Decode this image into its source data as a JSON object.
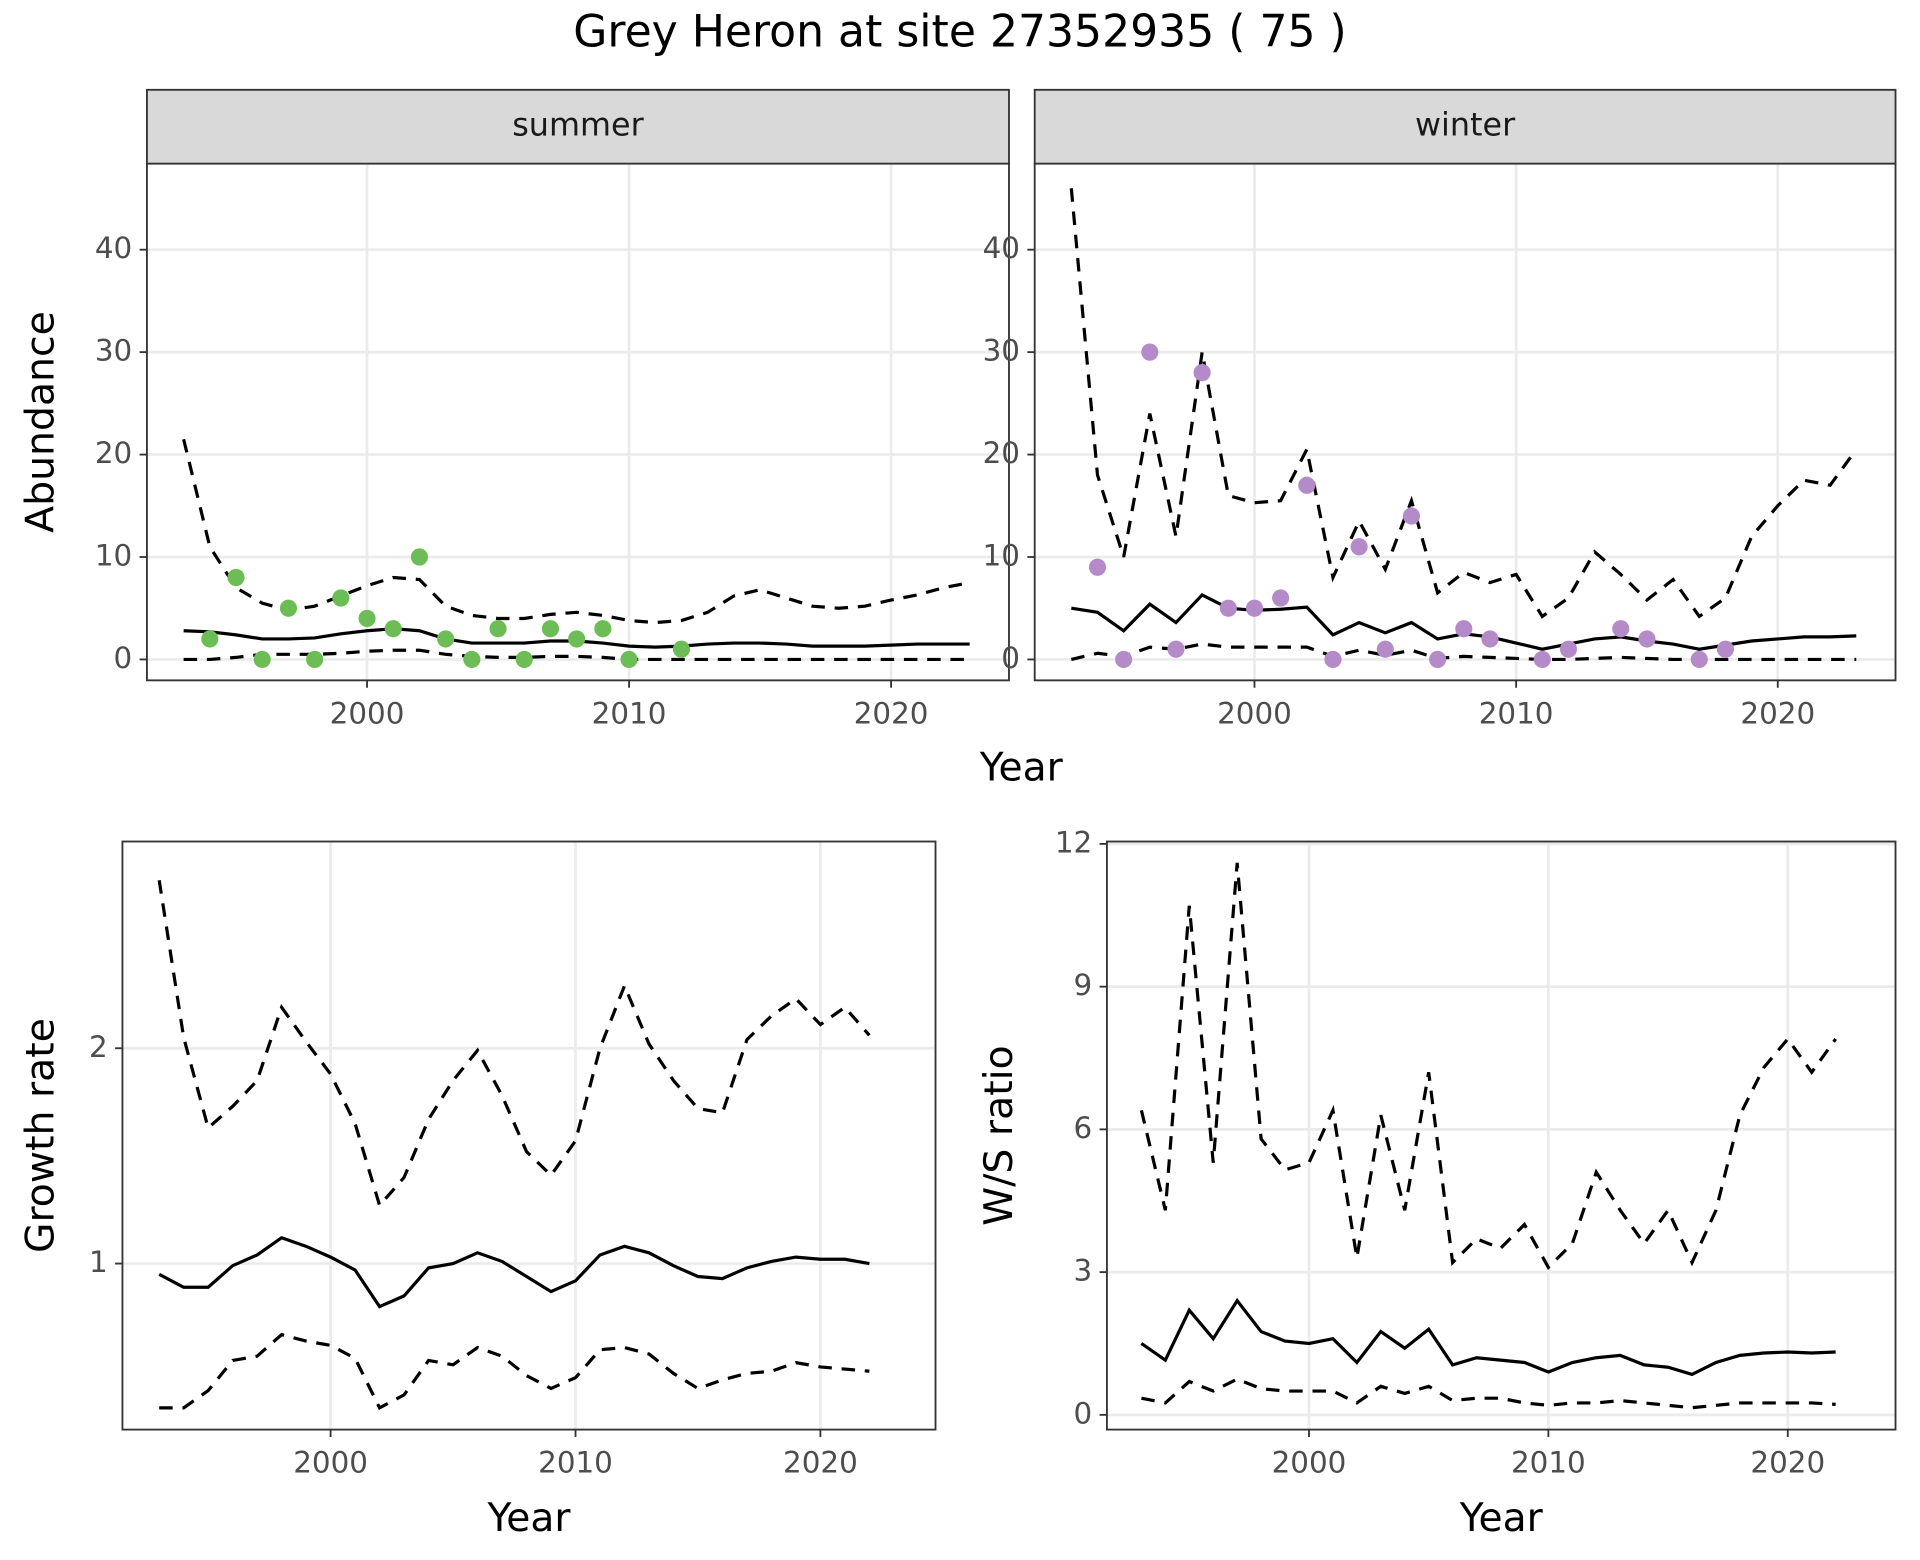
{
  "title": "Grey Heron at site 27352935 ( 75 )",
  "chart_data": [
    {
      "type": "line",
      "title": "summer",
      "xlabel": "Year",
      "ylabel": "Abundance",
      "x": [
        1993,
        1994,
        1995,
        1996,
        1997,
        1998,
        1999,
        2000,
        2001,
        2002,
        2003,
        2004,
        2005,
        2006,
        2007,
        2008,
        2009,
        2010,
        2011,
        2012,
        2013,
        2014,
        2015,
        2016,
        2017,
        2018,
        2019,
        2020,
        2021,
        2022,
        2023
      ],
      "xlim": [
        1991.6,
        2024.5
      ],
      "xticks": [
        2000,
        2010,
        2020
      ],
      "ylim": [
        -2.04,
        48.4
      ],
      "yticks": [
        0,
        10,
        20,
        30,
        40
      ],
      "grid": true,
      "series": [
        {
          "mode": "line",
          "linetype": "dashed",
          "color": "#000000",
          "values": [
            21.5,
            11,
            7,
            5.5,
            4.8,
            5.2,
            6.2,
            7.2,
            8.0,
            7.8,
            5.2,
            4.3,
            4.0,
            4.0,
            4.4,
            4.6,
            4.3,
            3.8,
            3.6,
            3.8,
            4.6,
            6.2,
            6.8,
            6.0,
            5.2,
            5.0,
            5.2,
            5.8,
            6.3,
            7.0,
            7.5
          ]
        },
        {
          "mode": "line",
          "linetype": "solid",
          "color": "#000000",
          "values": [
            2.8,
            2.7,
            2.4,
            2.0,
            2.0,
            2.1,
            2.5,
            2.8,
            3.0,
            2.8,
            2.0,
            1.6,
            1.6,
            1.6,
            1.8,
            1.8,
            1.6,
            1.3,
            1.2,
            1.3,
            1.5,
            1.6,
            1.6,
            1.5,
            1.3,
            1.3,
            1.3,
            1.4,
            1.5,
            1.5,
            1.5
          ]
        },
        {
          "mode": "line",
          "linetype": "dashed",
          "color": "#000000",
          "values": [
            0,
            0,
            0.2,
            0.5,
            0.5,
            0.5,
            0.6,
            0.8,
            0.9,
            0.9,
            0.5,
            0.3,
            0.2,
            0.2,
            0.3,
            0.3,
            0.2,
            0,
            0,
            0,
            0,
            0,
            0,
            0,
            0,
            0,
            0,
            0,
            0,
            0,
            0
          ]
        },
        {
          "mode": "points",
          "color": "#6dbd57",
          "values": [
            null,
            2,
            8,
            0,
            5,
            0,
            6,
            4,
            3,
            10,
            2,
            0,
            3,
            0,
            3,
            2,
            3,
            0,
            null,
            1,
            null,
            null,
            null,
            null,
            null,
            null,
            null,
            null,
            null,
            null,
            null
          ]
        }
      ]
    },
    {
      "type": "line",
      "title": "winter",
      "x": [
        1993,
        1994,
        1995,
        1996,
        1997,
        1998,
        1999,
        2000,
        2001,
        2002,
        2003,
        2004,
        2005,
        2006,
        2007,
        2008,
        2009,
        2010,
        2011,
        2012,
        2013,
        2014,
        2015,
        2016,
        2017,
        2018,
        2019,
        2020,
        2021,
        2022,
        2023
      ],
      "xlim": [
        1991.6,
        2024.5
      ],
      "xticks": [
        2000,
        2010,
        2020
      ],
      "ylim": [
        -2.04,
        48.4
      ],
      "yticks": [
        0,
        10,
        20,
        30,
        40
      ],
      "grid": true,
      "series": [
        {
          "mode": "line",
          "linetype": "dashed",
          "color": "#000000",
          "values": [
            46,
            18,
            10,
            24,
            12,
            30,
            16,
            15.3,
            15.5,
            20.5,
            8,
            13.5,
            8.8,
            15.5,
            6.5,
            8.5,
            7.5,
            8.3,
            4.2,
            6.0,
            10.5,
            8.3,
            5.8,
            7.8,
            4.2,
            6.0,
            12,
            15,
            17.5,
            17,
            20.5
          ]
        },
        {
          "mode": "line",
          "linetype": "solid",
          "color": "#000000",
          "values": [
            5.0,
            4.6,
            2.8,
            5.4,
            3.6,
            6.3,
            5.0,
            4.8,
            4.9,
            5.1,
            2.4,
            3.6,
            2.6,
            3.6,
            2.0,
            2.5,
            2.2,
            1.6,
            1.0,
            1.5,
            2.0,
            2.2,
            1.8,
            1.5,
            1.0,
            1.4,
            1.8,
            2.0,
            2.2,
            2.2,
            2.3
          ]
        },
        {
          "mode": "line",
          "linetype": "dashed",
          "color": "#000000",
          "values": [
            0,
            0.6,
            0.3,
            1.2,
            1.0,
            1.5,
            1.2,
            1.2,
            1.2,
            1.2,
            0.3,
            0.9,
            0.4,
            0.9,
            0.1,
            0.3,
            0.2,
            0.1,
            0,
            0,
            0.1,
            0.2,
            0.1,
            0,
            0,
            0,
            0,
            0,
            0,
            0,
            0
          ]
        },
        {
          "mode": "points",
          "color": "#b48bc8",
          "values": [
            null,
            9,
            0,
            30,
            1,
            28,
            5,
            5,
            6,
            17,
            0,
            11,
            1,
            14,
            0,
            3,
            2,
            null,
            0,
            1,
            null,
            3,
            2,
            null,
            0,
            1,
            null,
            null,
            null,
            null,
            null
          ]
        }
      ]
    },
    {
      "type": "line",
      "xlabel": "Year",
      "ylabel": "Growth rate",
      "x": [
        1993,
        1994,
        1995,
        1996,
        1997,
        1998,
        1999,
        2000,
        2001,
        2002,
        2003,
        2004,
        2005,
        2006,
        2007,
        2008,
        2009,
        2010,
        2011,
        2012,
        2013,
        2014,
        2015,
        2016,
        2017,
        2018,
        2019,
        2020,
        2021,
        2022
      ],
      "xlim": [
        1991.5,
        2024.7
      ],
      "xticks": [
        2000,
        2010,
        2020
      ],
      "ylim": [
        0.229,
        2.96
      ],
      "yticks": [
        1,
        2
      ],
      "grid": true,
      "series": [
        {
          "mode": "line",
          "linetype": "dashed",
          "color": "#000000",
          "values": [
            2.78,
            2.05,
            1.63,
            1.73,
            1.85,
            2.19,
            2.03,
            1.88,
            1.65,
            1.27,
            1.4,
            1.67,
            1.85,
            1.99,
            1.78,
            1.52,
            1.41,
            1.57,
            2.0,
            2.29,
            2.02,
            1.85,
            1.72,
            1.7,
            2.04,
            2.15,
            2.23,
            2.11,
            2.19,
            2.06
          ]
        },
        {
          "mode": "line",
          "linetype": "solid",
          "color": "#000000",
          "values": [
            0.95,
            0.89,
            0.89,
            0.99,
            1.04,
            1.12,
            1.08,
            1.03,
            0.97,
            0.8,
            0.85,
            0.98,
            1.0,
            1.05,
            1.01,
            0.94,
            0.87,
            0.92,
            1.04,
            1.08,
            1.05,
            0.99,
            0.94,
            0.93,
            0.98,
            1.01,
            1.03,
            1.02,
            1.02,
            1.0
          ]
        },
        {
          "mode": "line",
          "linetype": "dashed",
          "color": "#000000",
          "values": [
            0.33,
            0.33,
            0.41,
            0.55,
            0.57,
            0.67,
            0.64,
            0.62,
            0.56,
            0.33,
            0.39,
            0.55,
            0.53,
            0.61,
            0.57,
            0.48,
            0.42,
            0.47,
            0.6,
            0.61,
            0.58,
            0.49,
            0.42,
            0.46,
            0.49,
            0.5,
            0.54,
            0.52,
            0.51,
            0.5
          ]
        }
      ]
    },
    {
      "type": "line",
      "xlabel": "Year",
      "ylabel": "W/S ratio",
      "x": [
        1993,
        1994,
        1995,
        1996,
        1997,
        1998,
        1999,
        2000,
        2001,
        2002,
        2003,
        2004,
        2005,
        2006,
        2007,
        2008,
        2009,
        2010,
        2011,
        2012,
        2013,
        2014,
        2015,
        2016,
        2017,
        2018,
        2019,
        2020,
        2021,
        2022
      ],
      "xlim": [
        1991.56,
        2024.5
      ],
      "xticks": [
        2000,
        2010,
        2020
      ],
      "ylim": [
        -0.31,
        12.05
      ],
      "yticks": [
        0,
        3,
        6,
        9,
        12
      ],
      "grid": true,
      "series": [
        {
          "mode": "line",
          "linetype": "dashed",
          "color": "#000000",
          "values": [
            6.4,
            4.3,
            10.7,
            5.3,
            11.6,
            5.8,
            5.15,
            5.3,
            6.4,
            3.3,
            6.3,
            4.3,
            7.2,
            3.2,
            3.7,
            3.5,
            4.0,
            3.1,
            3.6,
            5.1,
            4.3,
            3.6,
            4.3,
            3.2,
            4.3,
            6.3,
            7.3,
            7.9,
            7.2,
            7.9
          ]
        },
        {
          "mode": "line",
          "linetype": "solid",
          "color": "#000000",
          "values": [
            1.5,
            1.15,
            2.2,
            1.6,
            2.4,
            1.75,
            1.55,
            1.5,
            1.6,
            1.1,
            1.75,
            1.4,
            1.8,
            1.05,
            1.2,
            1.15,
            1.1,
            0.9,
            1.1,
            1.2,
            1.25,
            1.05,
            1.0,
            0.85,
            1.1,
            1.25,
            1.3,
            1.32,
            1.3,
            1.32
          ]
        },
        {
          "mode": "line",
          "linetype": "dashed",
          "color": "#000000",
          "values": [
            0.35,
            0.25,
            0.7,
            0.5,
            0.75,
            0.55,
            0.5,
            0.5,
            0.5,
            0.25,
            0.6,
            0.45,
            0.6,
            0.3,
            0.35,
            0.35,
            0.25,
            0.2,
            0.25,
            0.25,
            0.3,
            0.25,
            0.2,
            0.15,
            0.2,
            0.25,
            0.25,
            0.25,
            0.25,
            0.22
          ]
        }
      ]
    }
  ]
}
